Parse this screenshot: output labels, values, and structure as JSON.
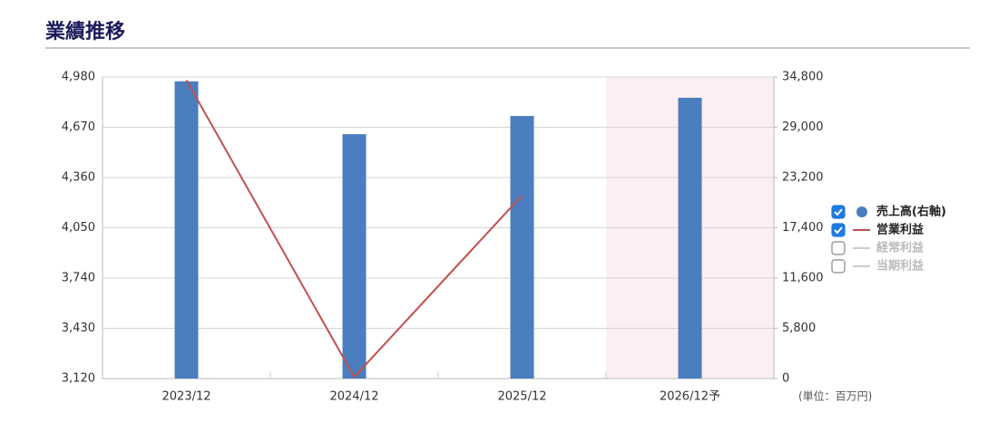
{
  "chart_data": {
    "type": "bar_line",
    "title": "業績推移",
    "unit": "(単位：百万円)",
    "categories": [
      "2023/12",
      "2024/12",
      "2025/12",
      "2026/12予"
    ],
    "forecast": [
      false,
      false,
      false,
      true
    ],
    "series": [
      {
        "name": "売上高(右軸)",
        "kind": "bar",
        "axis": "y2",
        "color": "#4a7ebf",
        "checked": true,
        "values": [
          34300,
          28200,
          30300,
          32400
        ]
      },
      {
        "name": "営業利益",
        "kind": "line",
        "axis": "y",
        "color": "#c0504d",
        "checked": true,
        "values": [
          4960,
          3130,
          4250,
          null
        ]
      },
      {
        "name": "経常利益",
        "kind": "line",
        "axis": "y",
        "color": "#cccccc",
        "checked": false,
        "values": [
          null,
          null,
          null,
          null
        ]
      },
      {
        "name": "当期利益",
        "kind": "line",
        "axis": "y",
        "color": "#cccccc",
        "checked": false,
        "values": [
          null,
          null,
          null,
          null
        ]
      }
    ],
    "ylim": [
      3120,
      4980
    ],
    "yticks": [
      {
        "value": 3120,
        "label": "3,120"
      },
      {
        "value": 3430,
        "label": "3,430"
      },
      {
        "value": 3740,
        "label": "3,740"
      },
      {
        "value": 4050,
        "label": "4,050"
      },
      {
        "value": 4360,
        "label": "4,360"
      },
      {
        "value": 4670,
        "label": "4,670"
      },
      {
        "value": 4980,
        "label": "4,980"
      }
    ],
    "y2lim": [
      0,
      34800
    ],
    "y2ticks": [
      0,
      {
        "value": 5800,
        "label": "5,800"
      },
      {
        "value": 11600,
        "label": "11,600"
      },
      {
        "value": 17400,
        "label": "17,400"
      },
      {
        "value": 23200,
        "label": "23,200"
      },
      {
        "value": 29000,
        "label": "29,000"
      },
      {
        "value": 34800,
        "label": "34,800"
      }
    ],
    "grid": true
  }
}
